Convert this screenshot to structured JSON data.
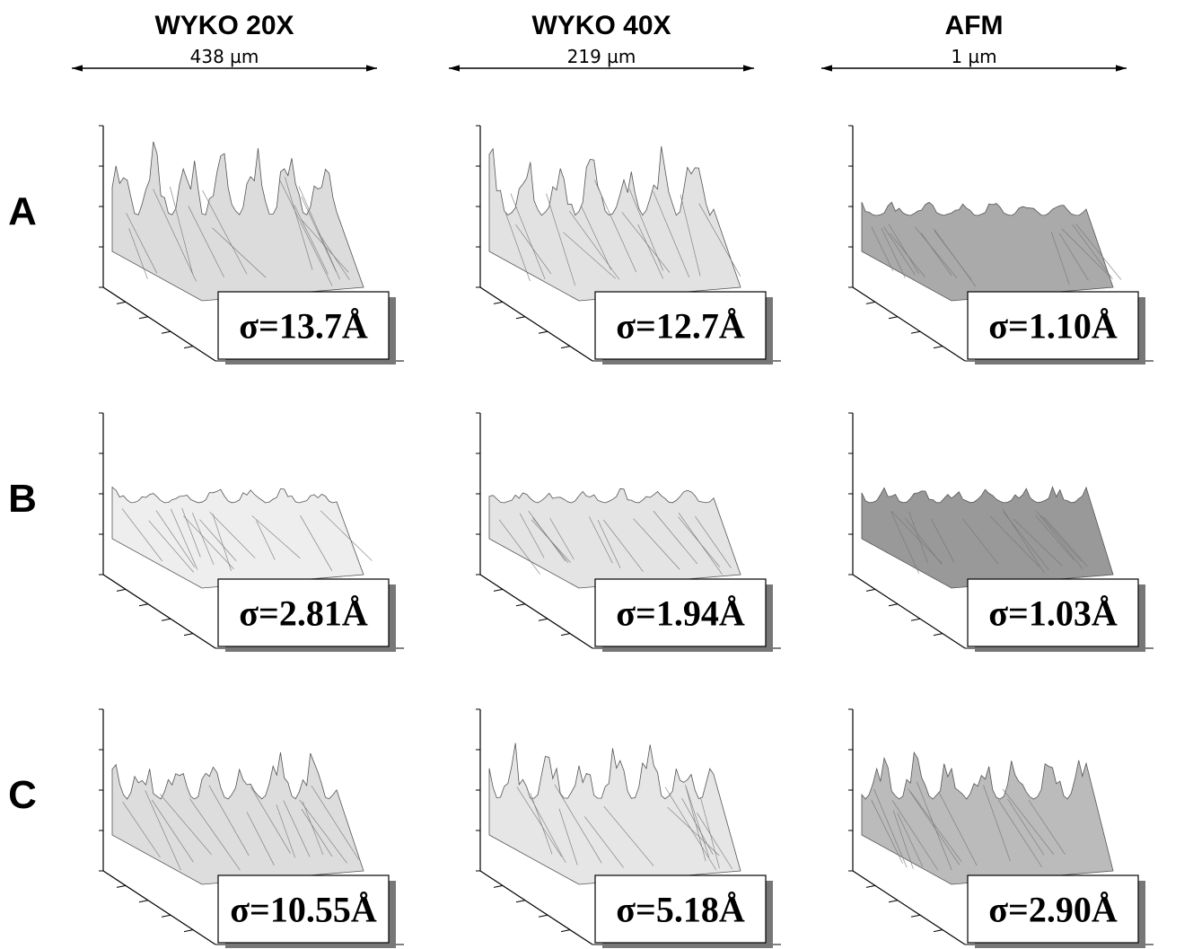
{
  "columns": [
    {
      "title": "WYKO 20X",
      "scale": "438 µm"
    },
    {
      "title": "WYKO 40X",
      "scale": "219 µm"
    },
    {
      "title": "AFM",
      "scale": "1 µm"
    }
  ],
  "rows": [
    {
      "label": "A",
      "panels": [
        {
          "sigma": "σ=13.7Å"
        },
        {
          "sigma": "σ=12.7Å"
        },
        {
          "sigma": "σ=1.10Å"
        }
      ]
    },
    {
      "label": "B",
      "panels": [
        {
          "sigma": "σ=2.81Å"
        },
        {
          "sigma": "σ=1.94Å"
        },
        {
          "sigma": "σ=1.03Å"
        }
      ]
    },
    {
      "label": "C",
      "panels": [
        {
          "sigma": "σ=10.55Å"
        },
        {
          "sigma": "σ=5.18Å"
        },
        {
          "sigma": "σ=2.90Å"
        }
      ]
    }
  ]
}
